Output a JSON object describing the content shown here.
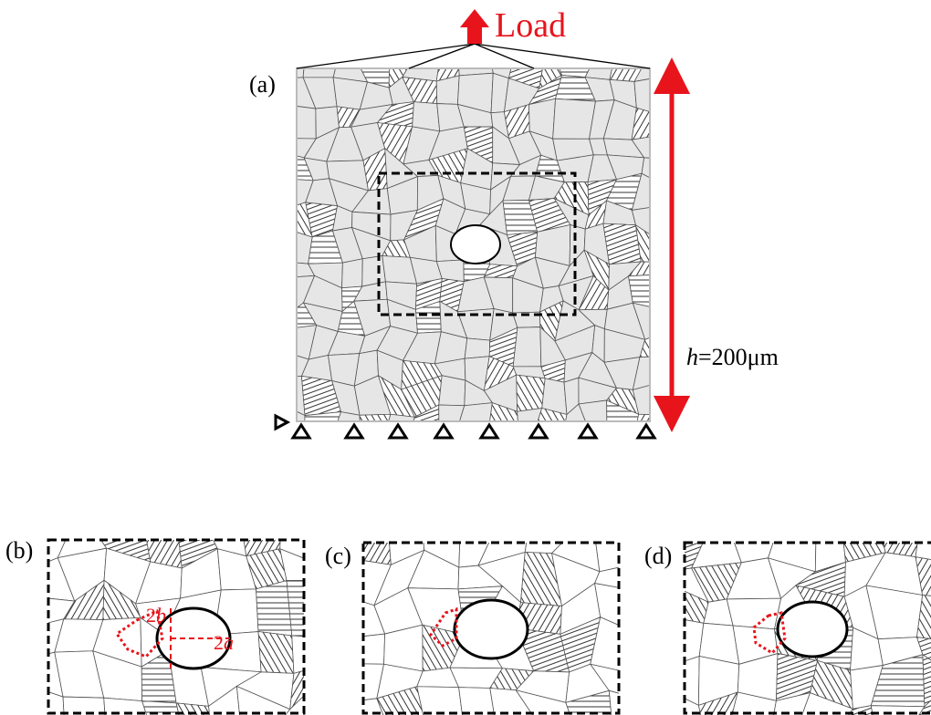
{
  "header": {
    "load": "Load"
  },
  "panels": [
    {
      "label": "(a)",
      "height_note": {
        "symbol": "h",
        "value": "=200μm"
      }
    },
    {
      "label": "(b)",
      "minor_axis": {
        "coefficient": "2",
        "symbol": "b"
      },
      "major_axis": {
        "coefficient": "2",
        "symbol": "a"
      }
    },
    {
      "label": "(c)"
    },
    {
      "label": "(d)"
    }
  ]
}
